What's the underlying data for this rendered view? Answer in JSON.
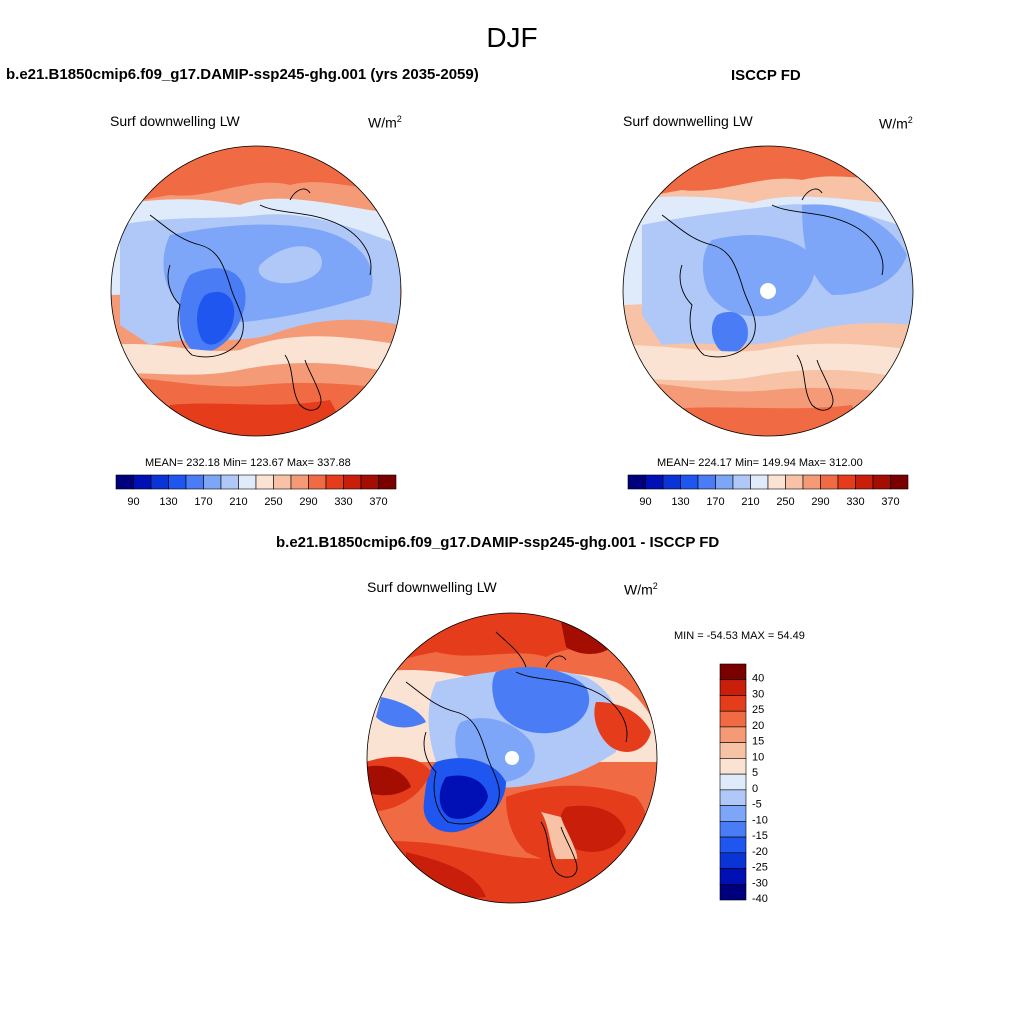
{
  "main_title": "DJF",
  "colors": {
    "levels": [
      "#00007f",
      "#0010b4",
      "#0a34d6",
      "#2056f0",
      "#4a7cf6",
      "#7ea6f8",
      "#b0c8f8",
      "#dfeafa",
      "#fbe3d4",
      "#f8c2a6",
      "#f59a76",
      "#f06a44",
      "#e53c1c",
      "#c81e0a",
      "#a40e02",
      "#7a0000"
    ],
    "diff_levels": [
      "#00007f",
      "#0010b4",
      "#0a34d6",
      "#2056f0",
      "#4a7cf6",
      "#7ea6f8",
      "#b0c8f8",
      "#dfeafa",
      "#fbe3d4",
      "#f8c2a6",
      "#f59a76",
      "#f06a44",
      "#e53c1c",
      "#c81e0a",
      "#7a0000"
    ]
  },
  "panels": {
    "model": {
      "title": "b.e21.B1850cmip6.f09_g17.DAMIP-ssp245-ghg.001 (yrs 2035-2059)",
      "variable": "Surf downwelling LW",
      "units_base": "W/m",
      "units_exp": "2",
      "stats": "MEAN= 232.18  Min= 123.67  Max= 337.88",
      "colorbar_ticks": [
        "90",
        "130",
        "170",
        "210",
        "250",
        "290",
        "330",
        "370"
      ]
    },
    "obs": {
      "title": "ISCCP FD",
      "variable": "Surf downwelling LW",
      "units_base": "W/m",
      "units_exp": "2",
      "stats": "MEAN= 224.17  Min= 149.94  Max= 312.00",
      "colorbar_ticks": [
        "90",
        "130",
        "170",
        "210",
        "250",
        "290",
        "330",
        "370"
      ]
    },
    "diff": {
      "title": "b.e21.B1850cmip6.f09_g17.DAMIP-ssp245-ghg.001 - ISCCP FD",
      "variable": "Surf downwelling LW",
      "units_base": "W/m",
      "units_exp": "2",
      "stats": "MIN = -54.53 MAX =  54.49",
      "colorbar_ticks": [
        "40",
        "30",
        "25",
        "20",
        "15",
        "10",
        "5",
        "0",
        "-5",
        "-10",
        "-15",
        "-20",
        "-25",
        "-30",
        "-40"
      ]
    }
  }
}
